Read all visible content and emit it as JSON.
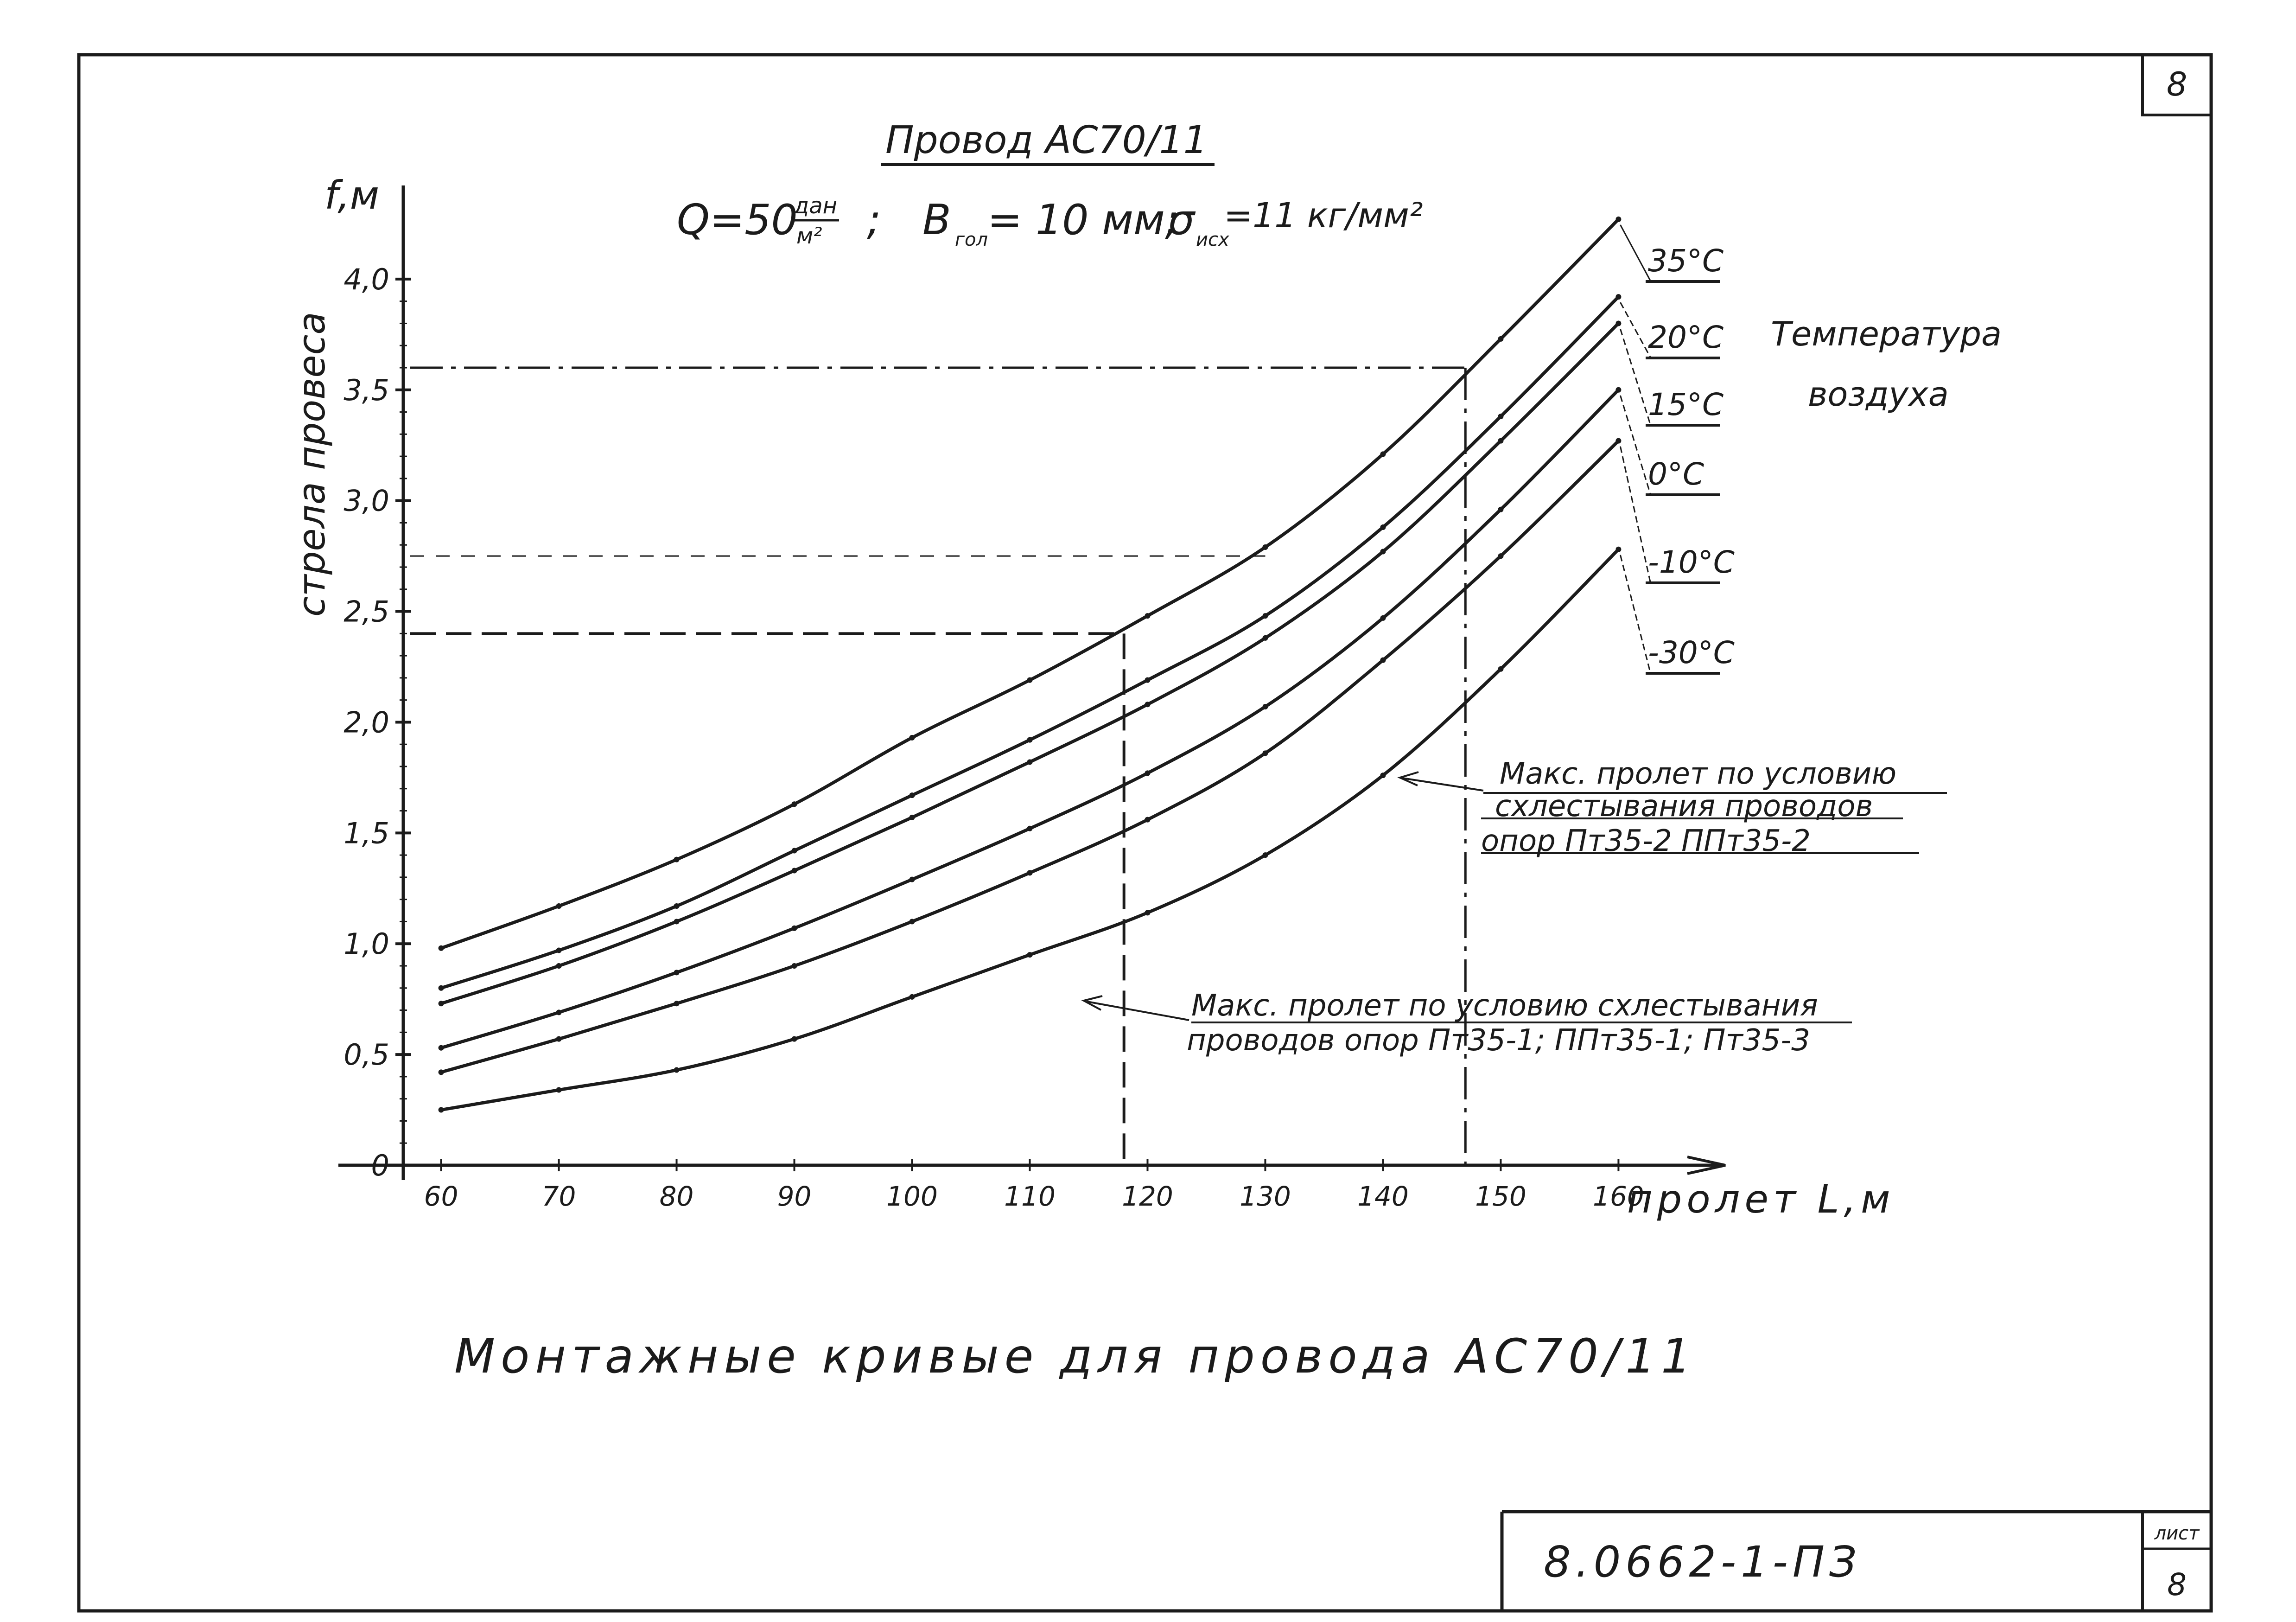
{
  "sheet": {
    "corner_number": "8",
    "doc_code": "8.0662-1-ПЗ",
    "sheet_label": "лист",
    "sheet_number": "8"
  },
  "header": {
    "title": "Провод АС70/11",
    "param_q_main": "Q=50",
    "param_q_num": "дан",
    "param_q_den": "м²",
    "param_sep1": ";",
    "param_b_main": "B",
    "param_b_sub": "гол",
    "param_b_rest": "= 10 мм;",
    "param_s_main": "σ",
    "param_s_sub": "исх",
    "param_s_rest": "=11 кг/мм²"
  },
  "caption": "Монтажные кривые для провода АС70/11",
  "legend": {
    "title_line1": "Температура",
    "title_line2": "воздуха"
  },
  "annotations": {
    "span_147": {
      "line1": "Макс. пролет по условию",
      "line2": "схлестывания проводов",
      "line3": "опор Пт35-2   ППт35-2"
    },
    "span_118": {
      "line1": "Макс. пролет по условию схлестывания",
      "line2": "проводов опор Пт35-1; ППт35-1; Пт35-3"
    }
  },
  "chart_data": {
    "type": "line",
    "title": "Провод АС70/11",
    "xlabel": "пролет L,м",
    "ylabel": "стрела провеса",
    "yunit": "f,м",
    "xlim": [
      51,
      169
    ],
    "ylim": [
      0,
      4.5
    ],
    "x": [
      60,
      70,
      80,
      90,
      100,
      110,
      120,
      130,
      140,
      150,
      160
    ],
    "xticks": [
      "60",
      "70",
      "80",
      "90",
      "100",
      "110",
      "120",
      "130",
      "140",
      "150",
      "160"
    ],
    "yticks": [
      0,
      0.5,
      1.0,
      1.5,
      2.0,
      2.5,
      3.0,
      3.5,
      4.0
    ],
    "ytick_labels": [
      "0",
      "0,5",
      "1,0",
      "1,5",
      "2,0",
      "2,5",
      "3,0",
      "3,5",
      "4,0"
    ],
    "series": [
      {
        "name": "35°C",
        "values": [
          0.98,
          1.17,
          1.38,
          1.63,
          1.93,
          2.19,
          2.48,
          2.79,
          3.21,
          3.73,
          4.27
        ]
      },
      {
        "name": "20°C",
        "values": [
          0.8,
          0.97,
          1.17,
          1.42,
          1.67,
          1.92,
          2.19,
          2.48,
          2.88,
          3.38,
          3.92
        ]
      },
      {
        "name": "15°C",
        "values": [
          0.73,
          0.9,
          1.1,
          1.33,
          1.57,
          1.82,
          2.08,
          2.38,
          2.77,
          3.27,
          3.8
        ]
      },
      {
        "name": "0°C",
        "values": [
          0.53,
          0.69,
          0.87,
          1.07,
          1.29,
          1.52,
          1.77,
          2.07,
          2.47,
          2.96,
          3.5
        ]
      },
      {
        "name": "-10°C",
        "values": [
          0.42,
          0.57,
          0.73,
          0.9,
          1.1,
          1.32,
          1.56,
          1.86,
          2.28,
          2.75,
          3.27
        ]
      },
      {
        "name": "-30°C",
        "values": [
          0.25,
          0.34,
          0.43,
          0.57,
          0.76,
          0.95,
          1.14,
          1.4,
          1.76,
          2.24,
          2.78
        ]
      }
    ],
    "reference_lines": [
      {
        "x": 118,
        "y": 2.4
      },
      {
        "x": 147,
        "y": 3.6
      },
      {
        "x": 130,
        "y": 2.75
      }
    ]
  }
}
